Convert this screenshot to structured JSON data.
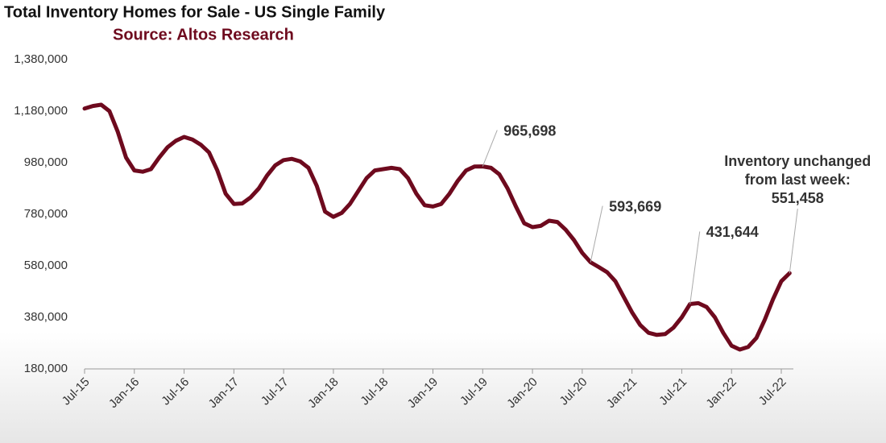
{
  "chart_data": {
    "type": "line",
    "title": "Total Inventory Homes for Sale - US Single Family",
    "subtitle": "Source: Altos Research",
    "annotation": [
      "Inventory unchanged",
      "from last week:"
    ],
    "color": "#6e0a1e",
    "categories": [
      "Jul-15",
      null,
      null,
      null,
      null,
      null,
      "Jan-16",
      null,
      null,
      null,
      null,
      null,
      "Jul-16",
      null,
      null,
      null,
      null,
      null,
      "Jan-17",
      null,
      null,
      null,
      null,
      null,
      "Jul-17",
      null,
      null,
      null,
      null,
      null,
      "Jan-18",
      null,
      null,
      null,
      null,
      null,
      "Jul-18",
      null,
      null,
      null,
      null,
      null,
      "Jan-19",
      null,
      null,
      null,
      null,
      null,
      "Jul-19",
      null,
      null,
      null,
      null,
      null,
      "Jan-20",
      null,
      null,
      null,
      null,
      null,
      "Jul-20",
      null,
      null,
      null,
      null,
      null,
      "Jan-21",
      null,
      null,
      null,
      null,
      null,
      "Jul-21",
      null,
      null,
      null,
      null,
      null,
      "Jan-22",
      null,
      null,
      null,
      null,
      null,
      "Jul-22",
      null
    ],
    "values": [
      1190000,
      1200000,
      1205000,
      1180000,
      1100000,
      1000000,
      950000,
      945000,
      955000,
      1000000,
      1040000,
      1065000,
      1080000,
      1070000,
      1050000,
      1020000,
      950000,
      860000,
      820000,
      822000,
      845000,
      880000,
      930000,
      970000,
      990000,
      995000,
      985000,
      960000,
      890000,
      790000,
      770000,
      785000,
      820000,
      870000,
      920000,
      950000,
      955000,
      960000,
      955000,
      920000,
      860000,
      815000,
      810000,
      820000,
      860000,
      910000,
      950000,
      965000,
      965698,
      960000,
      935000,
      880000,
      810000,
      745000,
      730000,
      735000,
      755000,
      750000,
      720000,
      680000,
      630000,
      593669,
      575000,
      555000,
      520000,
      460000,
      400000,
      350000,
      320000,
      312000,
      315000,
      340000,
      380000,
      431644,
      435000,
      420000,
      380000,
      320000,
      270000,
      255000,
      265000,
      300000,
      370000,
      450000,
      520000,
      551458
    ],
    "value_labels": [
      null,
      null,
      null,
      null,
      null,
      null,
      null,
      null,
      null,
      null,
      null,
      null,
      null,
      null,
      null,
      null,
      null,
      null,
      null,
      null,
      null,
      null,
      null,
      null,
      null,
      null,
      null,
      null,
      null,
      null,
      null,
      null,
      null,
      null,
      null,
      null,
      null,
      null,
      null,
      null,
      null,
      null,
      null,
      null,
      null,
      null,
      null,
      null,
      "965,698",
      null,
      null,
      null,
      null,
      null,
      null,
      null,
      null,
      null,
      null,
      null,
      null,
      "593,669",
      null,
      null,
      null,
      null,
      null,
      null,
      null,
      null,
      null,
      null,
      null,
      "431,644",
      null,
      null,
      null,
      null,
      null,
      null,
      null,
      null,
      null,
      null,
      null,
      "551,458"
    ],
    "ylim": [
      180000,
      1380000
    ],
    "yticks": [
      {
        "value": 180000,
        "label": "180,000"
      },
      {
        "value": 380000,
        "label": "380,000"
      },
      {
        "value": 580000,
        "label": "580,000"
      },
      {
        "value": 780000,
        "label": "780,000"
      },
      {
        "value": 980000,
        "label": "980,000"
      },
      {
        "value": 1180000,
        "label": "1,180,000"
      },
      {
        "value": 1380000,
        "label": "1,380,000"
      }
    ]
  }
}
